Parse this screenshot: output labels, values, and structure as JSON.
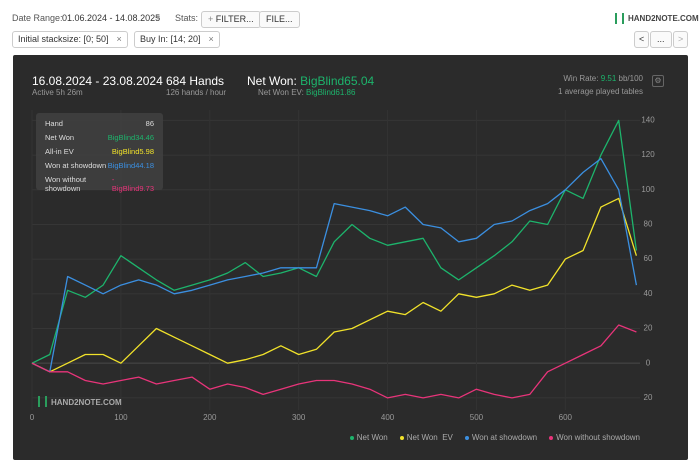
{
  "toolbar": {
    "date_label": "Date Range:",
    "date_value": "01.06.2024 - 14.08.2025",
    "stats_label": "Stats:",
    "filter_button": "FILTER...",
    "file_button": "FILE...",
    "logo": "HAND2NOTE.COM",
    "nav_more": "..."
  },
  "filters": [
    "Initial stacksize: [0; 50]",
    "Buy In: [14; 20]"
  ],
  "summary": {
    "period": "16.08.2024 - 23.08.2024",
    "active": "Active 5h 26m",
    "hands": "684 Hands",
    "rate": "126 hands / hour",
    "net_won_label": "Net Won:",
    "net_won_value": "BigBlind65.04",
    "ev_label": "Net Won  EV:",
    "ev_value": "BigBlind61.86",
    "win_rate_label": "Win Rate:",
    "win_rate_value": "9.51",
    "win_rate_unit": "bb/100",
    "tables": "1 average played tables"
  },
  "tooltip": [
    {
      "label": "Hand",
      "value": "86",
      "color": "#dddddd"
    },
    {
      "label": "Net Won",
      "value": "BigBlind34.46",
      "color": "#1db46c"
    },
    {
      "label": "All-in EV",
      "value": "BigBlind5.98",
      "color": "#f1e22a"
    },
    {
      "label": "Won at showdown",
      "value": "BigBlind44.18",
      "color": "#3b8fe0"
    },
    {
      "label": "Won without showdown",
      "value": "-BigBlind9.73",
      "color": "#e8347a"
    }
  ],
  "watermark": "HAND2NOTE.COM",
  "chart_data": {
    "type": "line",
    "x": [
      0,
      20,
      40,
      60,
      80,
      100,
      120,
      140,
      160,
      180,
      200,
      220,
      240,
      260,
      280,
      300,
      320,
      340,
      360,
      380,
      400,
      420,
      440,
      460,
      480,
      500,
      520,
      540,
      560,
      580,
      600,
      620,
      640,
      660,
      680
    ],
    "series": [
      {
        "name": "Net Won",
        "color": "#1db46c",
        "values": [
          0,
          5,
          42,
          38,
          45,
          62,
          55,
          48,
          42,
          45,
          48,
          52,
          58,
          50,
          52,
          55,
          50,
          70,
          80,
          72,
          68,
          70,
          72,
          55,
          48,
          55,
          62,
          70,
          82,
          80,
          100,
          95,
          120,
          140,
          65
        ]
      },
      {
        "name": "Net Won  EV",
        "color": "#f1e22a",
        "values": [
          0,
          -5,
          0,
          5,
          5,
          0,
          10,
          20,
          15,
          10,
          5,
          0,
          2,
          5,
          10,
          5,
          8,
          18,
          20,
          25,
          30,
          28,
          35,
          30,
          40,
          38,
          40,
          45,
          42,
          45,
          60,
          65,
          90,
          95,
          62
        ]
      },
      {
        "name": "Won at showdown",
        "color": "#3b8fe0",
        "values": [
          0,
          -5,
          50,
          45,
          40,
          45,
          48,
          45,
          40,
          42,
          45,
          48,
          50,
          52,
          55,
          55,
          55,
          92,
          90,
          88,
          85,
          90,
          80,
          78,
          70,
          72,
          80,
          82,
          88,
          92,
          100,
          110,
          118,
          100,
          45
        ]
      },
      {
        "name": "Won without showdown",
        "color": "#e8347a",
        "values": [
          0,
          -5,
          -5,
          -10,
          -12,
          -10,
          -8,
          -12,
          -10,
          -8,
          -15,
          -12,
          -14,
          -18,
          -15,
          -12,
          -10,
          -10,
          -12,
          -15,
          -20,
          -18,
          -20,
          -18,
          -20,
          -15,
          -18,
          -20,
          -18,
          -5,
          0,
          5,
          10,
          22,
          18
        ]
      }
    ],
    "xlim": [
      0,
      684
    ],
    "xticks": [
      0,
      100,
      200,
      300,
      400,
      500,
      600
    ],
    "ylim": [
      -27,
      146
    ],
    "yticks": [
      {
        "value": -20,
        "label": "20"
      },
      0,
      20,
      40,
      60,
      80,
      100,
      120,
      140
    ],
    "grid": true
  }
}
